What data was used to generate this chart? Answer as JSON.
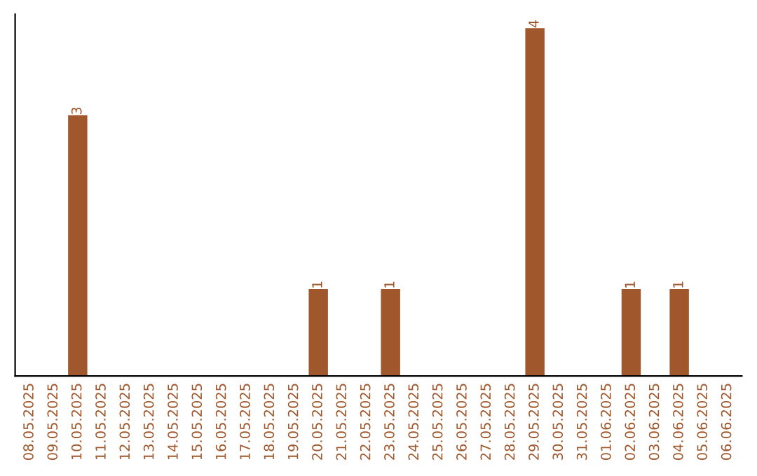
{
  "chart_data": {
    "type": "bar",
    "categories": [
      "08.05.2025",
      "09.05.2025",
      "10.05.2025",
      "11.05.2025",
      "12.05.2025",
      "13.05.2025",
      "14.05.2025",
      "15.05.2025",
      "16.05.2025",
      "17.05.2025",
      "18.05.2025",
      "19.05.2025",
      "20.05.2025",
      "21.05.2025",
      "22.05.2025",
      "23.05.2025",
      "24.05.2025",
      "25.05.2025",
      "26.05.2025",
      "27.05.2025",
      "28.05.2025",
      "29.05.2025",
      "30.05.2025",
      "31.05.2025",
      "01.06.2025",
      "02.06.2025",
      "03.06.2025",
      "04.06.2025",
      "05.06.2025",
      "06.06.2025"
    ],
    "values": [
      0,
      0,
      3,
      0,
      0,
      0,
      0,
      0,
      0,
      0,
      0,
      0,
      1,
      0,
      0,
      1,
      0,
      0,
      0,
      0,
      0,
      4,
      0,
      0,
      0,
      1,
      0,
      1,
      0,
      0
    ],
    "value_labels": [
      null,
      null,
      "3",
      null,
      null,
      null,
      null,
      null,
      null,
      null,
      null,
      null,
      "1",
      null,
      null,
      "1",
      null,
      null,
      null,
      null,
      null,
      "4",
      null,
      null,
      null,
      "1",
      null,
      "1",
      null,
      null
    ],
    "color": "#a0572b",
    "tick_labels": "x",
    "grid": false
  }
}
